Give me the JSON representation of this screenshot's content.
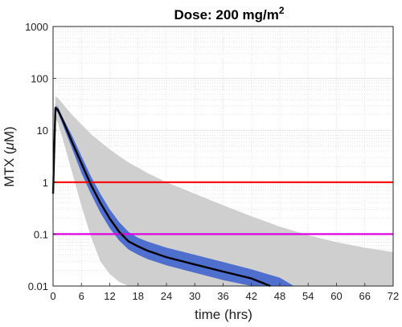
{
  "chart_data": {
    "type": "line",
    "title": "Dose: 200 mg/m",
    "title_superscript": "2",
    "xlabel": "time (hrs)",
    "ylabel_prefix": "MTX (",
    "ylabel_mu": "μ",
    "ylabel_suffix": "M)",
    "xlim": [
      0,
      72
    ],
    "ylim": [
      0.01,
      1000
    ],
    "yscale": "log",
    "grid": true,
    "x_ticks": [
      0,
      6,
      12,
      18,
      24,
      30,
      36,
      42,
      48,
      54,
      60,
      66,
      72
    ],
    "x_tick_labels": [
      "0",
      "6",
      "12",
      "18",
      "24",
      "30",
      "36",
      "42",
      "48",
      "54",
      "60",
      "66",
      "72"
    ],
    "y_ticks": [
      0.01,
      0.1,
      1,
      10,
      100,
      1000
    ],
    "y_tick_labels": [
      "0.01",
      "0.1",
      "1",
      "10",
      "100",
      "1000"
    ],
    "colors": {
      "outer_band": "#cfcfcf",
      "inner_band": "#4f6fce",
      "median": "#000000",
      "line_1": "#ff0000",
      "line_0_1": "#e000e0",
      "grid": "#d6d6d6"
    },
    "series": [
      {
        "role": "median",
        "x": [
          0,
          0.5,
          1,
          2,
          4,
          6,
          8,
          10,
          12,
          14,
          16,
          18,
          20,
          24,
          30,
          36,
          42,
          46
        ],
        "y": [
          0.6,
          27,
          25,
          16,
          6,
          2.3,
          0.9,
          0.4,
          0.2,
          0.11,
          0.072,
          0.058,
          0.048,
          0.036,
          0.026,
          0.019,
          0.014,
          0.01
        ]
      },
      {
        "role": "inner_band",
        "x": [
          0,
          0.5,
          1,
          2,
          4,
          6,
          8,
          10,
          12,
          14,
          16,
          18,
          20,
          24,
          30,
          36,
          42,
          48,
          51
        ],
        "upper": [
          0.6,
          30,
          28,
          18,
          8,
          3.2,
          1.3,
          0.6,
          0.3,
          0.17,
          0.11,
          0.085,
          0.072,
          0.055,
          0.04,
          0.029,
          0.021,
          0.0145,
          0.01
        ],
        "lower": [
          0.6,
          24,
          22,
          13,
          4.5,
          1.5,
          0.6,
          0.26,
          0.13,
          0.075,
          0.05,
          0.04,
          0.033,
          0.025,
          0.018,
          0.013,
          0.01,
          null,
          null
        ]
      },
      {
        "role": "outer_band",
        "x": [
          0,
          0.5,
          1,
          2,
          4,
          6,
          8,
          10,
          12,
          14,
          16,
          18,
          20,
          24,
          30,
          36,
          42,
          48,
          54,
          60,
          66,
          72
        ],
        "upper": [
          0.6,
          45,
          42,
          33,
          20,
          13,
          8.5,
          6,
          4.3,
          3.2,
          2.4,
          1.9,
          1.5,
          1.0,
          0.6,
          0.36,
          0.22,
          0.14,
          0.095,
          0.07,
          0.055,
          0.045
        ],
        "lower": [
          0.6,
          17,
          14,
          7,
          1.6,
          0.35,
          0.09,
          0.03,
          0.017,
          0.012,
          0.01,
          null,
          null,
          null,
          null,
          null,
          null,
          null,
          null,
          null,
          null,
          null
        ]
      }
    ],
    "reference_lines": [
      {
        "y": 1,
        "color": "#ff0000"
      },
      {
        "y": 0.1,
        "color": "#e000e0"
      }
    ]
  }
}
